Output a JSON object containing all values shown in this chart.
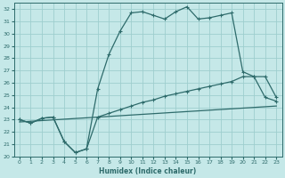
{
  "xlabel": "Humidex (Indice chaleur)",
  "background_color": "#c5e8e8",
  "grid_color": "#9ecece",
  "line_color": "#2e6b6b",
  "xlim": [
    -0.5,
    23.5
  ],
  "ylim": [
    20,
    32.5
  ],
  "xticks": [
    0,
    1,
    2,
    3,
    4,
    5,
    6,
    7,
    8,
    9,
    10,
    11,
    12,
    13,
    14,
    15,
    16,
    17,
    18,
    19,
    20,
    21,
    22,
    23
  ],
  "yticks": [
    20,
    21,
    22,
    23,
    24,
    25,
    26,
    27,
    28,
    29,
    30,
    31,
    32
  ],
  "line1_x": [
    0,
    1,
    2,
    3,
    4,
    5,
    6,
    7,
    8,
    9,
    10,
    11,
    12,
    13,
    14,
    15,
    16,
    17,
    18,
    19,
    20,
    21,
    22,
    23
  ],
  "line1_y": [
    23.0,
    22.7,
    23.1,
    23.2,
    21.2,
    20.3,
    20.6,
    25.5,
    28.3,
    30.2,
    31.7,
    31.8,
    31.5,
    31.2,
    31.8,
    32.2,
    31.2,
    31.3,
    31.5,
    31.7,
    26.9,
    26.5,
    26.5,
    24.8
  ],
  "line2_x": [
    0,
    1,
    2,
    3,
    4,
    5,
    6,
    7,
    8,
    9,
    10,
    11,
    12,
    13,
    14,
    15,
    16,
    17,
    18,
    19,
    20,
    21,
    22,
    23
  ],
  "line2_y": [
    23.0,
    22.7,
    23.1,
    23.2,
    21.2,
    20.3,
    20.6,
    23.2,
    23.5,
    23.8,
    24.1,
    24.4,
    24.6,
    24.9,
    25.1,
    25.3,
    25.5,
    25.7,
    25.9,
    26.1,
    26.5,
    26.5,
    24.8,
    24.5
  ],
  "line3_x": [
    0,
    23
  ],
  "line3_y": [
    22.8,
    24.1
  ]
}
